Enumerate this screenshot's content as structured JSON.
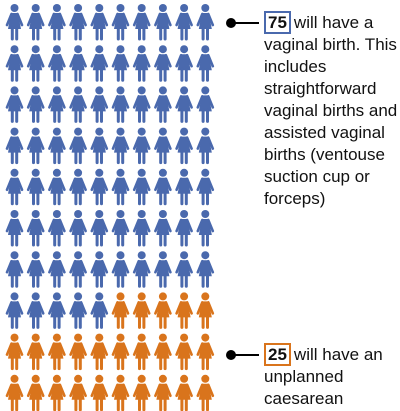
{
  "chart_data": {
    "type": "pictograph",
    "columns": 10,
    "rows": 10,
    "total": 100,
    "series": [
      {
        "value": 75,
        "color": "#4a69ad"
      },
      {
        "value": 25,
        "color": "#d9741c"
      }
    ]
  },
  "callouts": [
    {
      "count": "75",
      "text": "will have a vaginal birth. This includes straightforward vaginal births and assisted vaginal births (ventouse suction cup or forceps)",
      "color": "#4a69ad"
    },
    {
      "count": "25",
      "text": "will have an unplanned caesarean",
      "color": "#d9741c"
    }
  ]
}
